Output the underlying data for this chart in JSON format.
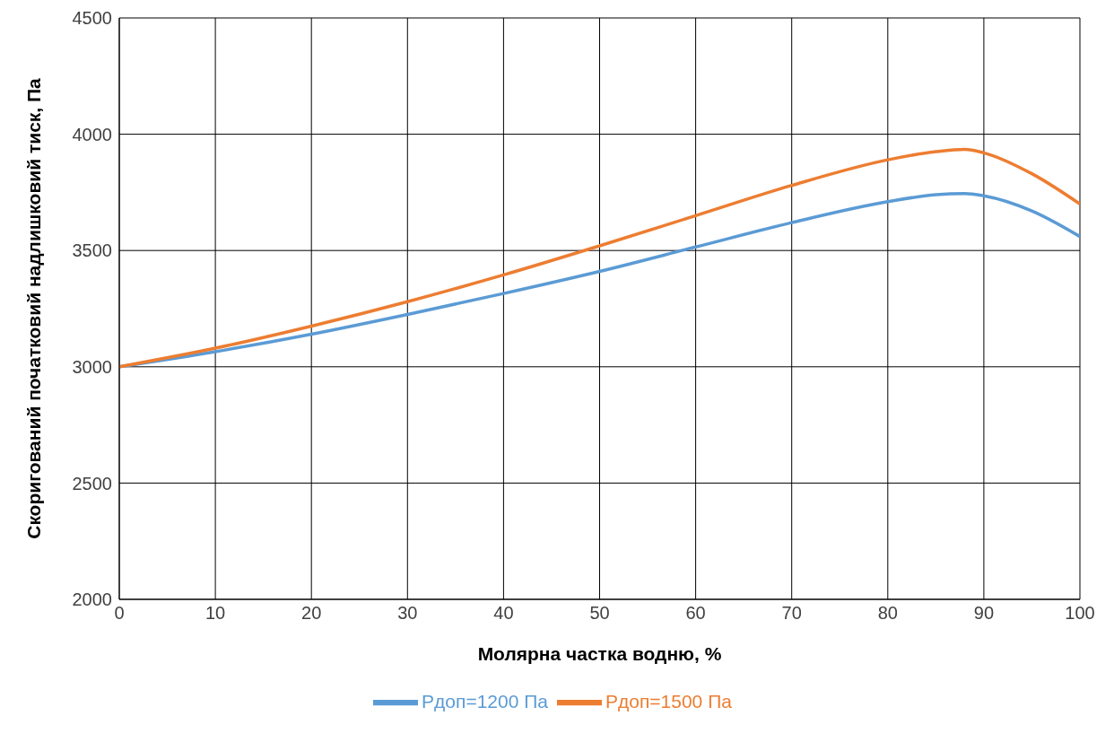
{
  "chart_data": {
    "type": "line",
    "xlabel": "Молярна частка водню, %",
    "ylabel": "Скоригований початковий надлишковий тиск, Па",
    "x": [
      0,
      10,
      20,
      30,
      40,
      50,
      60,
      70,
      80,
      85,
      88,
      90,
      95,
      100
    ],
    "series": [
      {
        "name": "Pдоп=1200 Па",
        "color": "#5b9bd5",
        "values": [
          3000,
          3065,
          3140,
          3225,
          3315,
          3410,
          3515,
          3620,
          3710,
          3740,
          3745,
          3735,
          3670,
          3560
        ]
      },
      {
        "name": "Pдоп=1500 Па",
        "color": "#ed7d31",
        "values": [
          3000,
          3080,
          3175,
          3280,
          3395,
          3520,
          3650,
          3780,
          3890,
          3925,
          3935,
          3920,
          3830,
          3700
        ]
      }
    ],
    "xlim": [
      0,
      100
    ],
    "xticks": [
      0,
      10,
      20,
      30,
      40,
      50,
      60,
      70,
      80,
      90,
      100
    ],
    "ylim": [
      2000,
      4500
    ],
    "yticks": [
      2000,
      2500,
      3000,
      3500,
      4000,
      4500
    ],
    "grid": true,
    "legend": "bottom",
    "marker": "none",
    "line_style": "solid"
  }
}
